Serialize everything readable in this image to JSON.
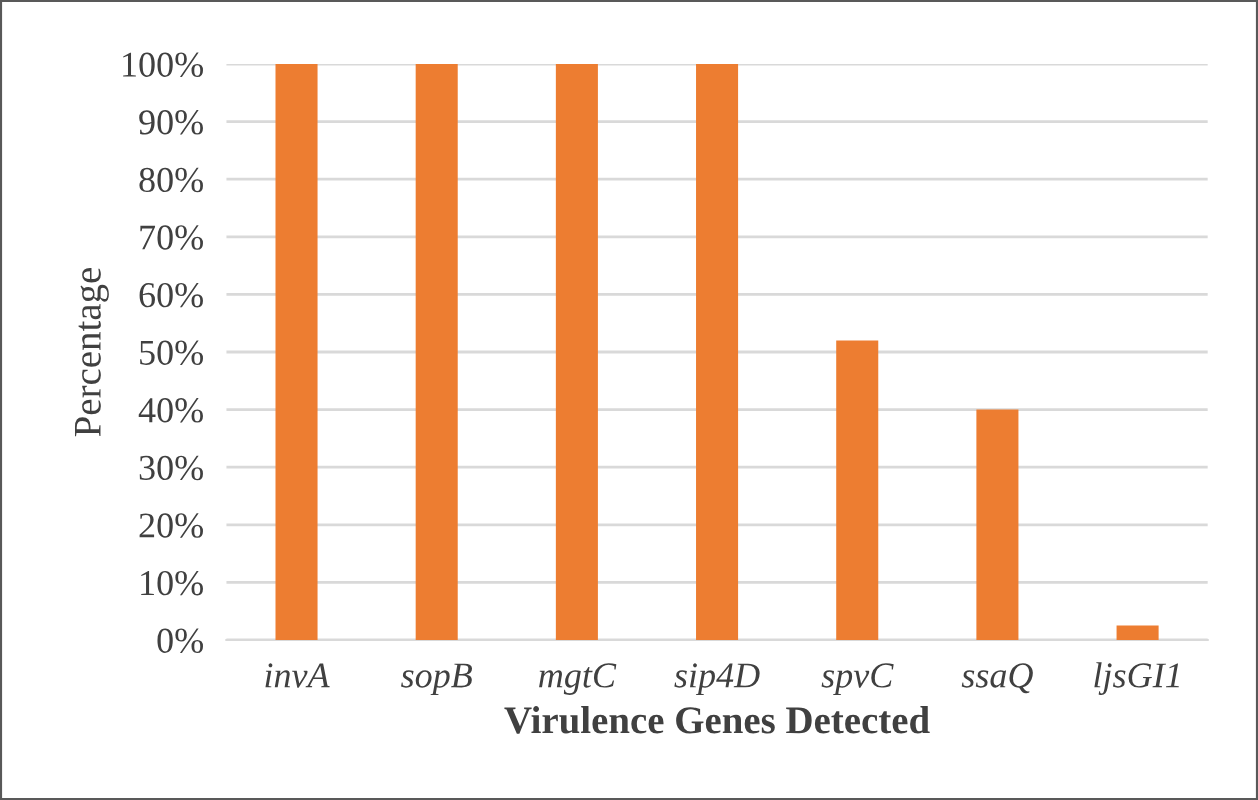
{
  "chart_data": {
    "type": "bar",
    "xlabel": "Virulence Genes Detected",
    "ylabel": "Percentage",
    "categories": [
      "invA",
      "sopB",
      "mgtC",
      "sip4D",
      "spvC",
      "ssaQ",
      "ljsGI1"
    ],
    "values": [
      100,
      100,
      100,
      100,
      52,
      40,
      2.5
    ],
    "color": "#ed7d31",
    "ylim": [
      0,
      100
    ],
    "yticks": [
      {
        "value": 0,
        "label": "0%"
      },
      {
        "value": 10,
        "label": "10%"
      },
      {
        "value": 20,
        "label": "20%"
      },
      {
        "value": 30,
        "label": "30%"
      },
      {
        "value": 40,
        "label": "40%"
      },
      {
        "value": 50,
        "label": "50%"
      },
      {
        "value": 60,
        "label": "60%"
      },
      {
        "value": 70,
        "label": "70%"
      },
      {
        "value": 80,
        "label": "80%"
      },
      {
        "value": 90,
        "label": "90%"
      },
      {
        "value": 100,
        "label": "100%"
      }
    ],
    "grid": "y"
  }
}
